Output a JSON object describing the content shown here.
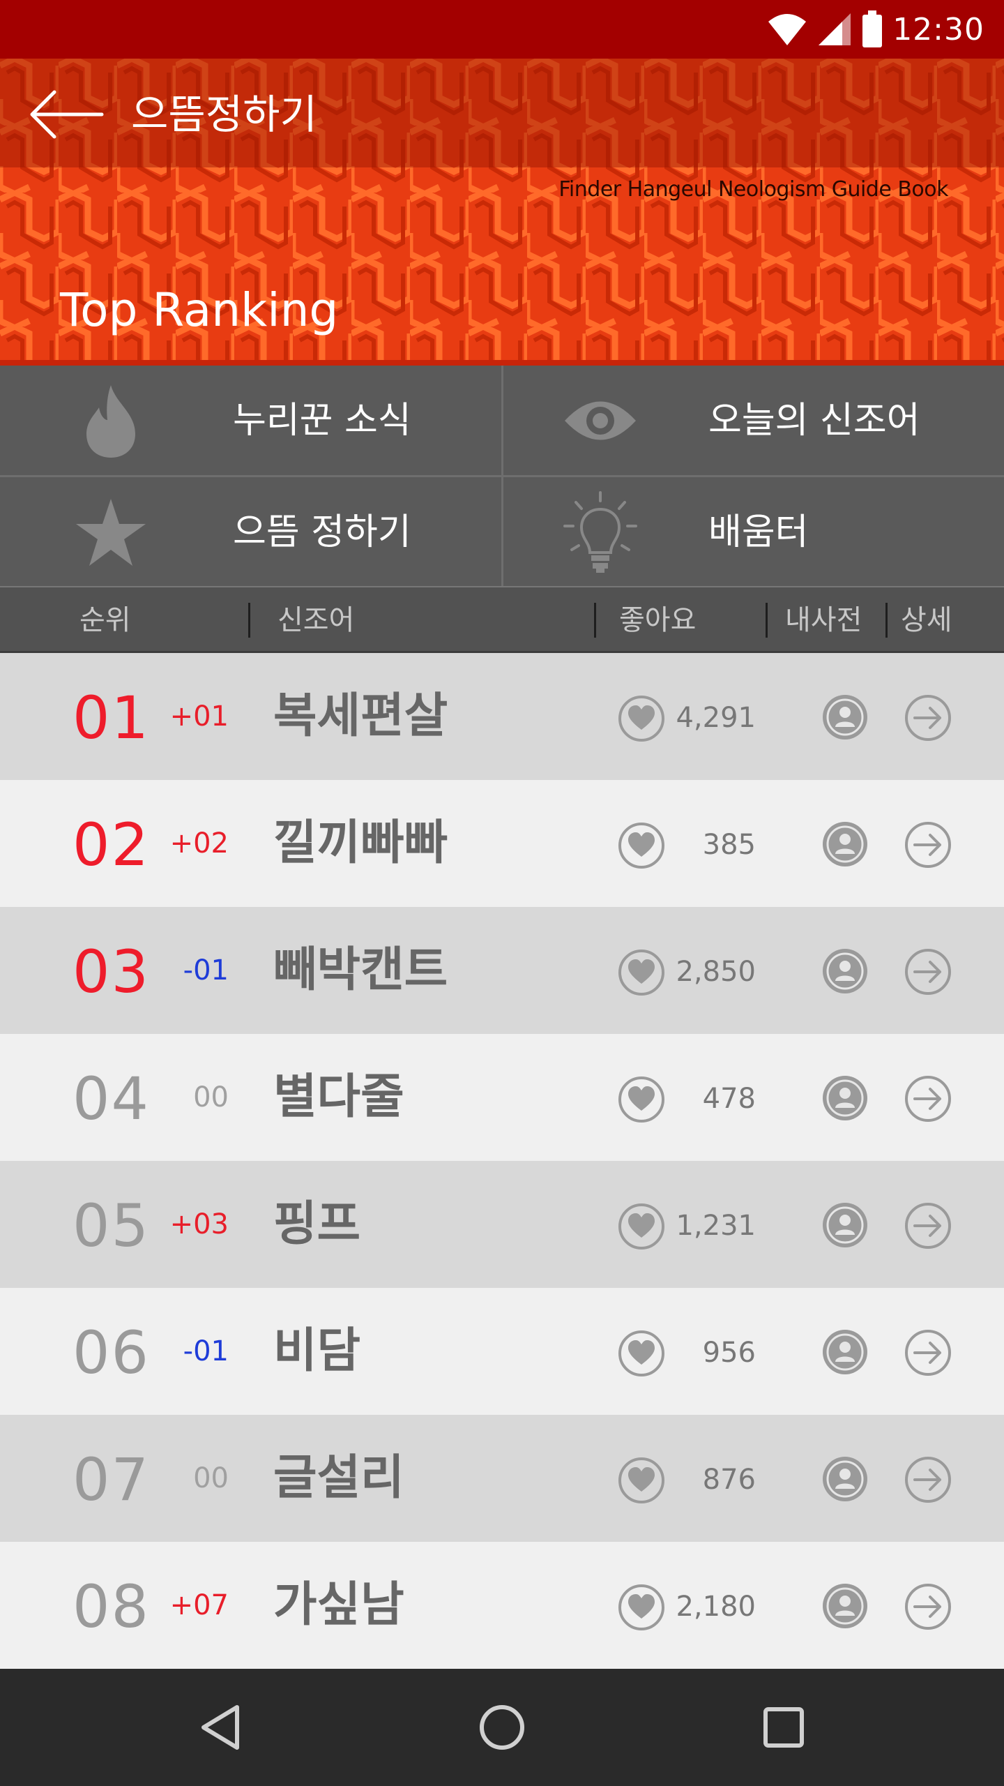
{
  "status_bar": {
    "time": "12:30",
    "icons": [
      "wifi-icon",
      "signal-icon",
      "battery-icon"
    ]
  },
  "header": {
    "title": "으뜸정하기",
    "guide_book": "Finder Hangeul Neologism Guide Book",
    "section_title": "Top Ranking",
    "colors": {
      "orange": "#e83c12",
      "dark_red": "#a30000"
    }
  },
  "menu": {
    "items": [
      {
        "label": "누리꾼 소식",
        "icon": "flame-icon"
      },
      {
        "label": "오늘의 신조어",
        "icon": "eye-icon"
      },
      {
        "label": "으뜸 정하기",
        "icon": "star-icon"
      },
      {
        "label": "배움터",
        "icon": "lightbulb-icon"
      }
    ]
  },
  "columns": {
    "rank": "순위",
    "word": "신조어",
    "likes": "좋아요",
    "dictionary": "내사전",
    "detail": "상세"
  },
  "rows": [
    {
      "rank": "01",
      "change": "+01",
      "word": "복세편살",
      "likes": "4,291"
    },
    {
      "rank": "02",
      "change": "+02",
      "word": "낄끼빠빠",
      "likes": "385"
    },
    {
      "rank": "03",
      "change": "-01",
      "word": "빼박캔트",
      "likes": "2,850"
    },
    {
      "rank": "04",
      "change": "00",
      "word": "별다줄",
      "likes": "478"
    },
    {
      "rank": "05",
      "change": "+03",
      "word": "핑프",
      "likes": "1,231"
    },
    {
      "rank": "06",
      "change": "-01",
      "word": "비담",
      "likes": "956"
    },
    {
      "rank": "07",
      "change": "00",
      "word": "글설리",
      "likes": "876"
    },
    {
      "rank": "08",
      "change": "+07",
      "word": "가싶남",
      "likes": "2,180"
    }
  ],
  "nav": {
    "buttons": [
      "back-triangle-icon",
      "home-circle-icon",
      "recents-square-icon"
    ]
  }
}
